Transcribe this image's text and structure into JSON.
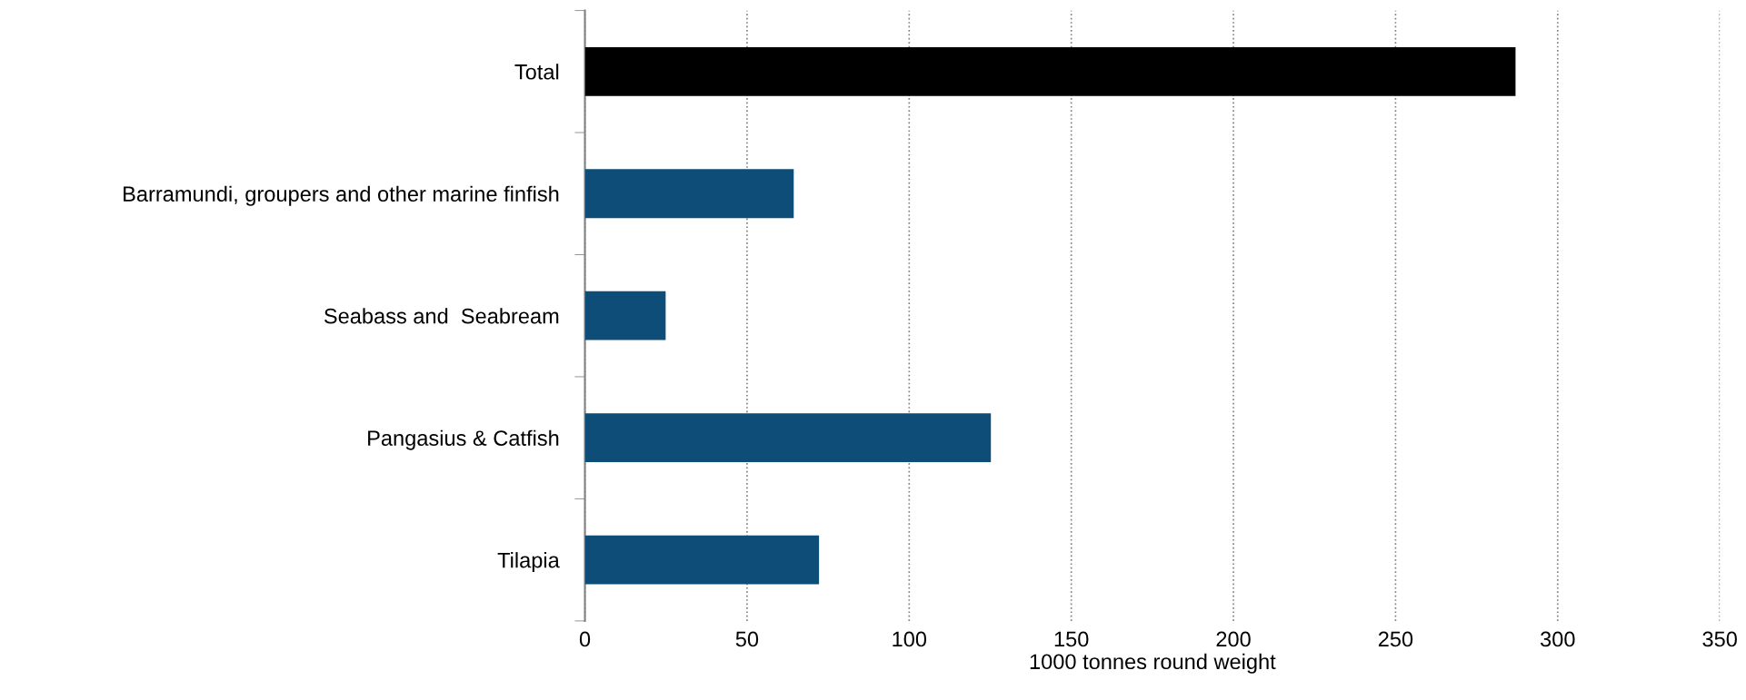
{
  "chart_data": {
    "type": "bar",
    "orientation": "horizontal",
    "xlabel": "1000 tonnes round weight",
    "categories": [
      "Total",
      "Barramundi, groupers and other marine finfish",
      "Seabass and  Seabream",
      "Pangasius & Catfish",
      "Tilapia"
    ],
    "values": [
      287,
      64.4,
      24.9,
      125.2,
      72.2
    ],
    "colors": [
      "#000000",
      "#0e4d78",
      "#0e4d78",
      "#0e4d78",
      "#0e4d78"
    ],
    "xlim": [
      0,
      350
    ],
    "xticks": [
      0,
      50,
      100,
      150,
      200,
      250,
      300,
      350
    ],
    "grid": "x"
  }
}
